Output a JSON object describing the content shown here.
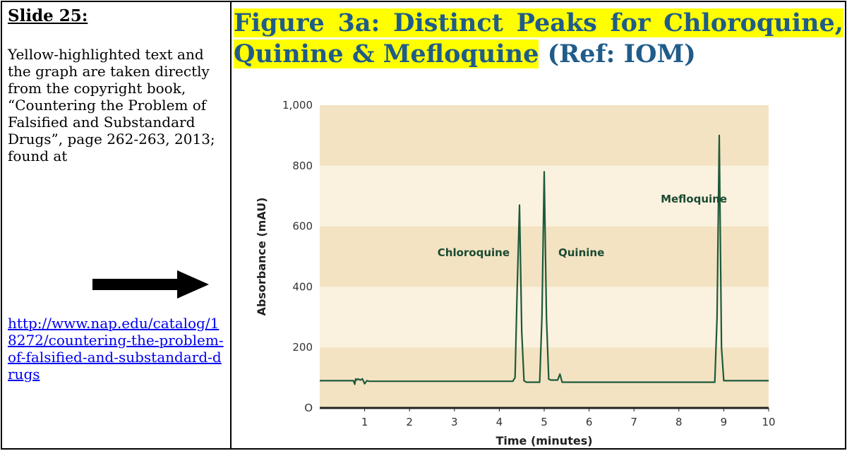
{
  "left": {
    "slide_title": "Slide 25:",
    "note": "Yellow-highlighted text and the graph are taken directly from the copyright book, “Countering the Problem of Falsified and Substandard Drugs”, page 262-263, 2013; found at",
    "link_text": "http://www.nap.edu/catalog/18272/countering-the-problem-of-falsified-and-substandard-drugs",
    "link_href": "http://www.nap.edu/catalog/18272/countering-the-problem-of-falsified-and-substandard-drugs"
  },
  "figure": {
    "title_highlighted": "Figure 3a: Distinct Peaks for Chloroquine, Quinine & Mefloquine",
    "title_ref": " (Ref: IOM)"
  },
  "colors": {
    "title": "#1f5c8a",
    "highlight": "#ffff00",
    "band_dark": "#f3e3c3",
    "band_light": "#faf1de",
    "trace": "#1d5a3a",
    "axis": "#222222"
  },
  "chart_data": {
    "type": "line",
    "title": "",
    "xlabel": "Time (minutes)",
    "ylabel": "Absorbance (mAU)",
    "xlim": [
      0,
      10
    ],
    "ylim": [
      0,
      1000
    ],
    "x_ticks": [
      1,
      2,
      3,
      4,
      5,
      6,
      7,
      8,
      9,
      10
    ],
    "y_ticks": [
      0,
      200,
      400,
      600,
      800,
      1000
    ],
    "y_tick_labels": [
      "O",
      "200",
      "400",
      "600",
      "800",
      "1,000"
    ],
    "grid": "alternating horizontal bands",
    "peaks": [
      {
        "name": "Chloroquine",
        "x": 4.45,
        "y": 670
      },
      {
        "name": "Quinine",
        "x": 5.0,
        "y": 780
      },
      {
        "name": "Mefloquine",
        "x": 8.9,
        "y": 900
      }
    ],
    "series": [
      {
        "x": [
          0,
          0.75,
          0.78,
          0.8,
          0.82,
          0.85,
          0.9,
          0.95,
          1.0,
          1.05,
          1.1,
          4.3,
          4.35,
          4.4,
          4.45,
          4.5,
          4.55,
          4.6,
          4.9,
          4.95,
          5.0,
          5.05,
          5.1,
          5.15,
          5.3,
          5.35,
          5.4,
          5.45,
          5.5,
          8.8,
          8.85,
          8.9,
          8.95,
          9.0,
          10
        ],
        "y": [
          90,
          90,
          78,
          96,
          92,
          96,
          92,
          96,
          80,
          90,
          88,
          88,
          100,
          400,
          670,
          250,
          90,
          85,
          85,
          300,
          780,
          300,
          95,
          92,
          92,
          112,
          85,
          85,
          85,
          85,
          300,
          900,
          200,
          90,
          90
        ]
      }
    ]
  }
}
